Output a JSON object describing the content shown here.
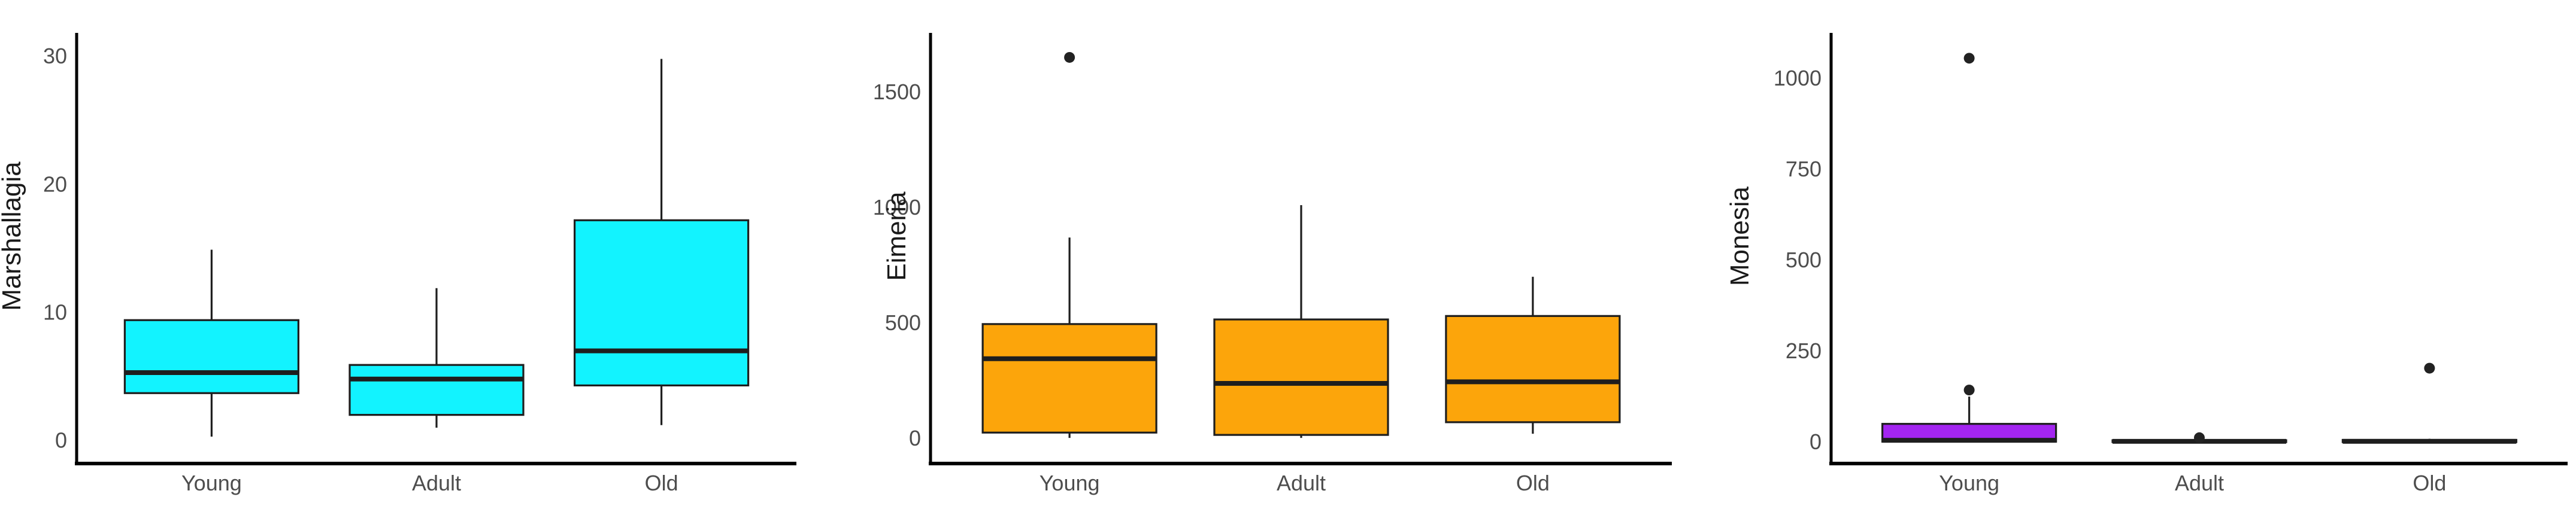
{
  "figure": {
    "background": "#ffffff",
    "axis_color": "#000000",
    "tick_label_color": "#4d4d4d",
    "box_stroke_color": "#1e1e1e",
    "median_color": "#1e1e1e",
    "outlier_color": "#222222",
    "ylabel_color": "#1a1a1a"
  },
  "chart_data": [
    {
      "type": "box",
      "title": "",
      "xlabel": "",
      "ylabel": "Marshallagia",
      "categories": [
        "Young",
        "Adult",
        "Old"
      ],
      "yticks": [
        0,
        10,
        20,
        30
      ],
      "ylim": [
        -1.8,
        32.3
      ],
      "grid": false,
      "legend": false,
      "box_fill": "#12F3FF",
      "series": [
        {
          "label": "Young",
          "min": 0.3,
          "q1": 3.7,
          "median": 5.3,
          "q3": 9.4,
          "max": 14.9,
          "outliers": []
        },
        {
          "label": "Adult",
          "min": 1.0,
          "q1": 2.0,
          "median": 4.8,
          "q3": 5.9,
          "max": 11.9,
          "outliers": []
        },
        {
          "label": "Old",
          "min": 1.2,
          "q1": 4.3,
          "median": 7.0,
          "q3": 17.2,
          "max": 29.8,
          "outliers": []
        }
      ]
    },
    {
      "type": "box",
      "title": "",
      "xlabel": "",
      "ylabel": "Eimeria",
      "categories": [
        "Young",
        "Adult",
        "Old"
      ],
      "yticks": [
        0,
        500,
        1000,
        1500
      ],
      "ylim": [
        -109,
        1782
      ],
      "grid": false,
      "legend": false,
      "box_fill": "#FCA50B",
      "series": [
        {
          "label": "Young",
          "min": 2,
          "q1": 25,
          "median": 345,
          "q3": 495,
          "max": 870,
          "outliers": [
            1650
          ]
        },
        {
          "label": "Adult",
          "min": 2,
          "q1": 15,
          "median": 238,
          "q3": 515,
          "max": 1010,
          "outliers": []
        },
        {
          "label": "Old",
          "min": 20,
          "q1": 70,
          "median": 245,
          "q3": 530,
          "max": 700,
          "outliers": []
        }
      ]
    },
    {
      "type": "box",
      "title": "",
      "xlabel": "",
      "ylabel": "Monesia",
      "categories": [
        "Young",
        "Adult",
        "Old"
      ],
      "yticks": [
        0,
        250,
        500,
        750,
        1000
      ],
      "ylim": [
        -59,
        1141
      ],
      "grid": false,
      "legend": false,
      "box_fill": "#A325F0",
      "series": [
        {
          "label": "Young",
          "min": 0,
          "q1": 1,
          "median": 5,
          "q3": 50,
          "max": 125,
          "outliers": [
            143,
            1055
          ]
        },
        {
          "label": "Adult",
          "min": 0,
          "q1": 0,
          "median": 2,
          "q3": 5,
          "max": 8,
          "outliers": [
            12
          ]
        },
        {
          "label": "Old",
          "min": 0,
          "q1": 0,
          "median": 2,
          "q3": 6,
          "max": 9,
          "outliers": [
            203
          ]
        }
      ]
    }
  ]
}
